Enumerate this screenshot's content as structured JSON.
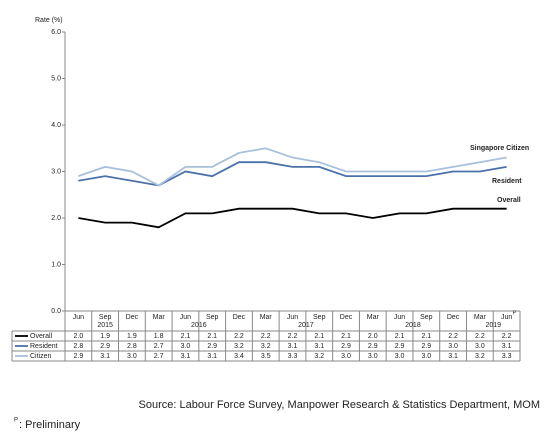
{
  "chart_data": {
    "type": "line",
    "y_label": "Rate (%)",
    "categories": [
      "Jun",
      "Sep",
      "Dec",
      "Mar",
      "Jun",
      "Sep",
      "Dec",
      "Mar",
      "Jun",
      "Sep",
      "Dec",
      "Mar",
      "Jun",
      "Sep",
      "Dec",
      "Mar",
      "Jun"
    ],
    "years": [
      "2015",
      "2016",
      "2017",
      "2018",
      "2019"
    ],
    "preliminary_mark": "P",
    "preliminary_note": ": Preliminary",
    "series": [
      {
        "name": "Overall",
        "line_label": "Overall",
        "color": "#000000",
        "values": [
          2.0,
          1.9,
          1.9,
          1.8,
          2.1,
          2.1,
          2.2,
          2.2,
          2.2,
          2.1,
          2.1,
          2.0,
          2.1,
          2.1,
          2.2,
          2.2,
          2.2
        ],
        "value_labels": [
          "2.0",
          "1.9",
          "1.9",
          "1.8",
          "2.1",
          "2.1",
          "2.2",
          "2.2",
          "2.2",
          "2.1",
          "2.1",
          "2.0",
          "2.1",
          "2.1",
          "2.2",
          "2.2",
          "2.2"
        ]
      },
      {
        "name": "Resident",
        "line_label": "Resident",
        "color": "#4a72a8",
        "values": [
          2.8,
          2.9,
          2.8,
          2.7,
          3.0,
          2.9,
          3.2,
          3.2,
          3.1,
          3.1,
          2.9,
          2.9,
          2.9,
          2.9,
          3.0,
          3.0,
          3.1
        ],
        "value_labels": [
          "2.8",
          "2.9",
          "2.8",
          "2.7",
          "3.0",
          "2.9",
          "3.2",
          "3.2",
          "3.1",
          "3.1",
          "2.9",
          "2.9",
          "2.9",
          "2.9",
          "3.0",
          "3.0",
          "3.1"
        ]
      },
      {
        "name": "Citizen",
        "line_label": "Singapore Citizen",
        "color": "#a9c0dc",
        "values": [
          2.9,
          3.1,
          3.0,
          2.7,
          3.1,
          3.1,
          3.4,
          3.5,
          3.3,
          3.2,
          3.0,
          3.0,
          3.0,
          3.0,
          3.1,
          3.2,
          3.3
        ],
        "value_labels": [
          "2.9",
          "3.1",
          "3.0",
          "2.7",
          "3.1",
          "3.1",
          "3.4",
          "3.5",
          "3.3",
          "3.2",
          "3.0",
          "3.0",
          "3.0",
          "3.0",
          "3.1",
          "3.2",
          "3.3"
        ]
      }
    ],
    "ylim": [
      0,
      6
    ],
    "yticks": [
      {
        "value": 0,
        "label": "0.0"
      },
      {
        "value": 1,
        "label": "1.0"
      },
      {
        "value": 2,
        "label": "2.0"
      },
      {
        "value": 3,
        "label": "3.0"
      },
      {
        "value": 4,
        "label": "4.0"
      },
      {
        "value": 5,
        "label": "5.0"
      },
      {
        "value": 6,
        "label": "6.0"
      }
    ],
    "source": "Source: Labour Force Survey, Manpower Research & Statistics Department, MOM"
  }
}
